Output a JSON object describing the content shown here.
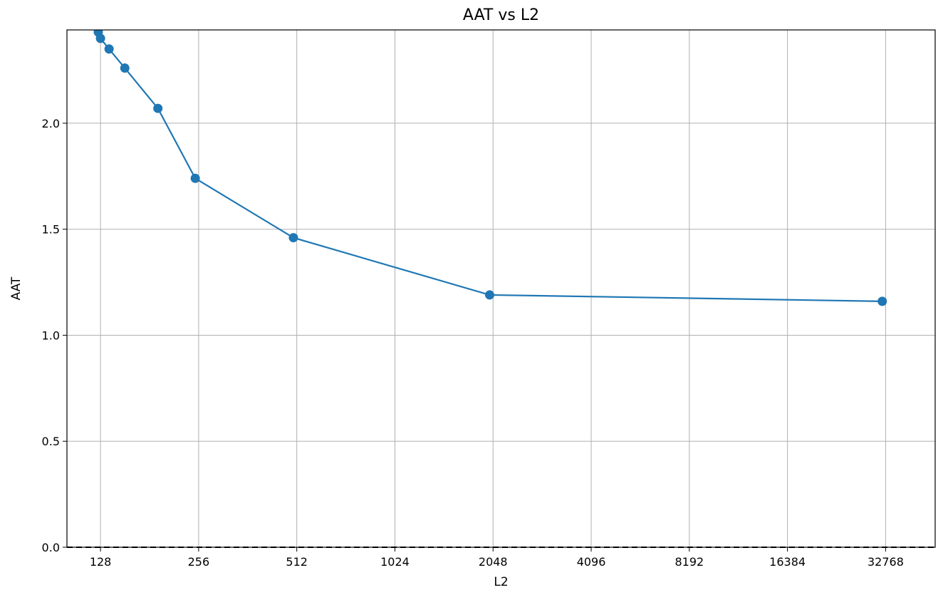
{
  "chart_data": {
    "type": "line",
    "title": "AAT vs L2",
    "xlabel": "L2",
    "ylabel": "AAT",
    "x_scale": "log2",
    "xlim": [
      101,
      46500
    ],
    "ylim": [
      0.0,
      2.44
    ],
    "x_ticks": [
      128,
      256,
      512,
      1024,
      2048,
      4096,
      8192,
      16384,
      32768
    ],
    "x_tick_labels": [
      "128",
      "256",
      "512",
      "1024",
      "2048",
      "4096",
      "8192",
      "16384",
      "32768"
    ],
    "y_ticks": [
      0.0,
      0.5,
      1.0,
      1.5,
      2.0
    ],
    "y_tick_labels": [
      "0.0",
      "0.5",
      "1.0",
      "1.5",
      "2.0"
    ],
    "grid": true,
    "reference_line": {
      "y": 0.0,
      "style": "dashed",
      "color": "#000000"
    },
    "series": [
      {
        "color": "#1f77b4",
        "marker": "circle",
        "x": [
          126,
          128,
          136,
          152,
          192,
          250,
          500,
          2000,
          32000
        ],
        "y": [
          2.43,
          2.4,
          2.35,
          2.26,
          2.07,
          1.74,
          1.46,
          1.19,
          1.16
        ]
      }
    ]
  }
}
